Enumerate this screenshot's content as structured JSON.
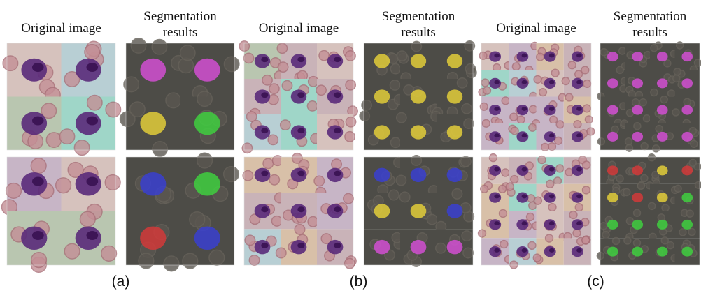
{
  "panels": [
    {
      "label": "(a)",
      "columns": [
        {
          "title": "Original image"
        },
        {
          "title": "Segmentation results"
        }
      ]
    },
    {
      "label": "(b)",
      "columns": [
        {
          "title": "Original image"
        },
        {
          "title": "Segmentation results"
        }
      ]
    },
    {
      "label": "(c)",
      "columns": [
        {
          "title": "Original image"
        },
        {
          "title": "Segmentation results"
        }
      ]
    }
  ]
}
